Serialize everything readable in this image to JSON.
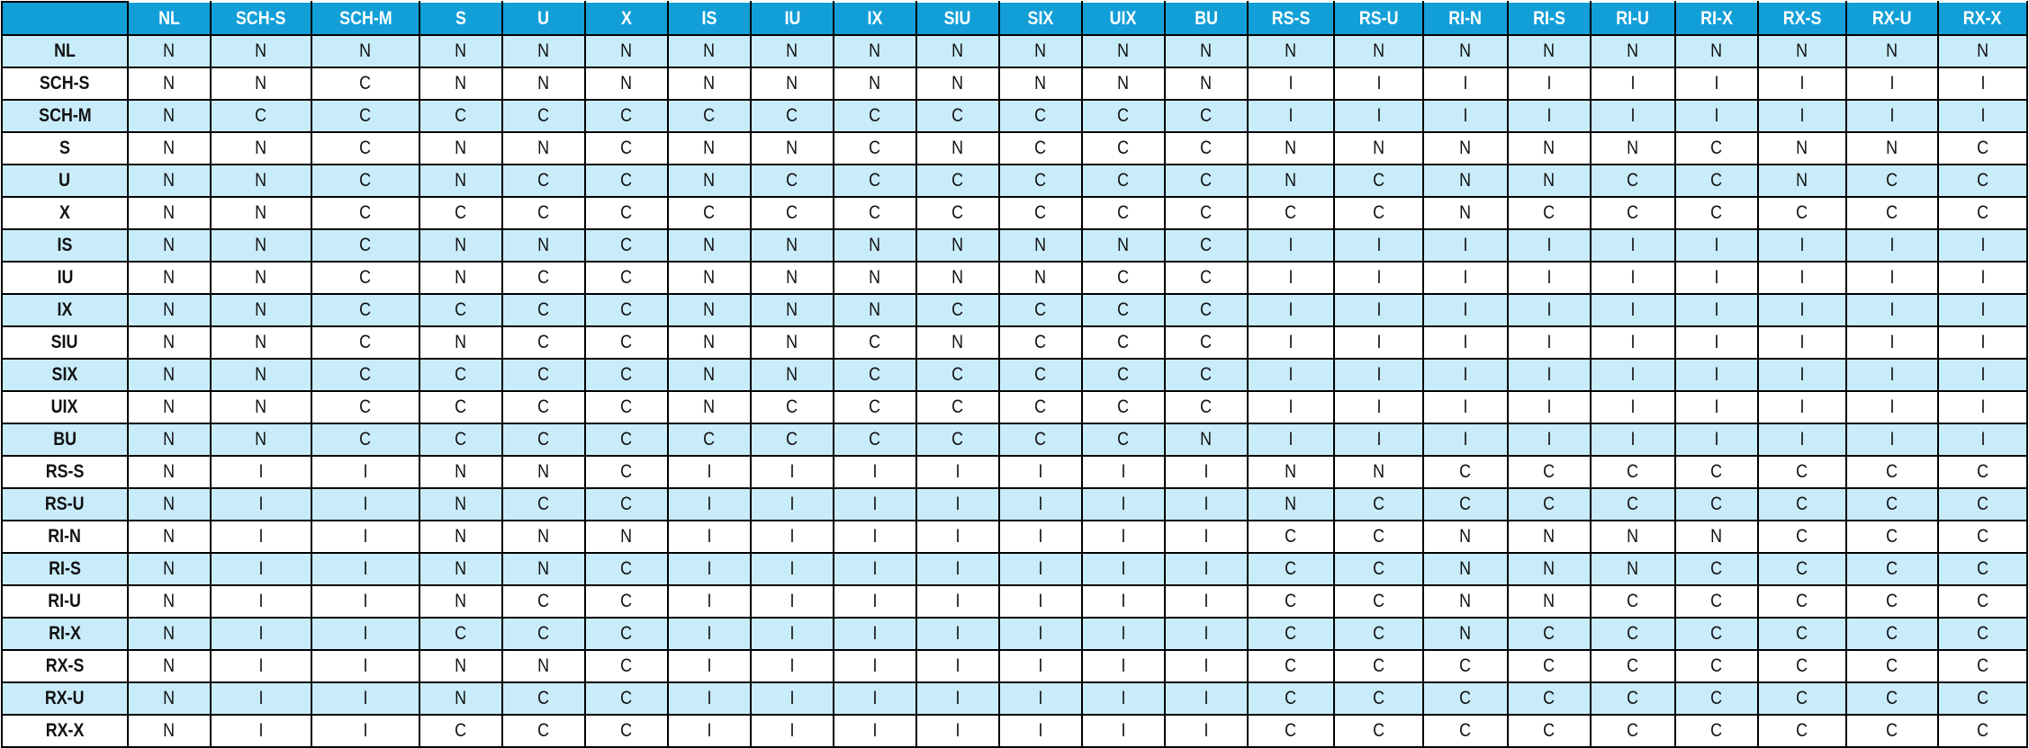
{
  "colors": {
    "header_bg": "#129fd8",
    "header_text": "#ffffff",
    "alt_row_bg": "#c9ecfa",
    "row_bg": "#ffffff",
    "border": "#000000"
  },
  "matrix": {
    "corner_label": "",
    "columns": [
      "NL",
      "SCH-S",
      "SCH-M",
      "S",
      "U",
      "X",
      "IS",
      "IU",
      "IX",
      "SIU",
      "SIX",
      "UIX",
      "BU",
      "RS-S",
      "RS-U",
      "RI-N",
      "RI-S",
      "RI-U",
      "RI-X",
      "RX-S",
      "RX-U",
      "RX-X"
    ],
    "rows": [
      {
        "label": "NL",
        "values": [
          "N",
          "N",
          "N",
          "N",
          "N",
          "N",
          "N",
          "N",
          "N",
          "N",
          "N",
          "N",
          "N",
          "N",
          "N",
          "N",
          "N",
          "N",
          "N",
          "N",
          "N",
          "N"
        ]
      },
      {
        "label": "SCH-S",
        "values": [
          "N",
          "N",
          "C",
          "N",
          "N",
          "N",
          "N",
          "N",
          "N",
          "N",
          "N",
          "N",
          "N",
          "I",
          "I",
          "I",
          "I",
          "I",
          "I",
          "I",
          "I",
          "I"
        ]
      },
      {
        "label": "SCH-M",
        "values": [
          "N",
          "C",
          "C",
          "C",
          "C",
          "C",
          "C",
          "C",
          "C",
          "C",
          "C",
          "C",
          "C",
          "I",
          "I",
          "I",
          "I",
          "I",
          "I",
          "I",
          "I",
          "I"
        ]
      },
      {
        "label": "S",
        "values": [
          "N",
          "N",
          "C",
          "N",
          "N",
          "C",
          "N",
          "N",
          "C",
          "N",
          "C",
          "C",
          "C",
          "N",
          "N",
          "N",
          "N",
          "N",
          "C",
          "N",
          "N",
          "C"
        ]
      },
      {
        "label": "U",
        "values": [
          "N",
          "N",
          "C",
          "N",
          "C",
          "C",
          "N",
          "C",
          "C",
          "C",
          "C",
          "C",
          "C",
          "N",
          "C",
          "N",
          "N",
          "C",
          "C",
          "N",
          "C",
          "C"
        ]
      },
      {
        "label": "X",
        "values": [
          "N",
          "N",
          "C",
          "C",
          "C",
          "C",
          "C",
          "C",
          "C",
          "C",
          "C",
          "C",
          "C",
          "C",
          "C",
          "N",
          "C",
          "C",
          "C",
          "C",
          "C",
          "C"
        ]
      },
      {
        "label": "IS",
        "values": [
          "N",
          "N",
          "C",
          "N",
          "N",
          "C",
          "N",
          "N",
          "N",
          "N",
          "N",
          "N",
          "C",
          "I",
          "I",
          "I",
          "I",
          "I",
          "I",
          "I",
          "I",
          "I"
        ]
      },
      {
        "label": "IU",
        "values": [
          "N",
          "N",
          "C",
          "N",
          "C",
          "C",
          "N",
          "N",
          "N",
          "N",
          "N",
          "C",
          "C",
          "I",
          "I",
          "I",
          "I",
          "I",
          "I",
          "I",
          "I",
          "I"
        ]
      },
      {
        "label": "IX",
        "values": [
          "N",
          "N",
          "C",
          "C",
          "C",
          "C",
          "N",
          "N",
          "N",
          "C",
          "C",
          "C",
          "C",
          "I",
          "I",
          "I",
          "I",
          "I",
          "I",
          "I",
          "I",
          "I"
        ]
      },
      {
        "label": "SIU",
        "values": [
          "N",
          "N",
          "C",
          "N",
          "C",
          "C",
          "N",
          "N",
          "C",
          "N",
          "C",
          "C",
          "C",
          "I",
          "I",
          "I",
          "I",
          "I",
          "I",
          "I",
          "I",
          "I"
        ]
      },
      {
        "label": "SIX",
        "values": [
          "N",
          "N",
          "C",
          "C",
          "C",
          "C",
          "N",
          "N",
          "C",
          "C",
          "C",
          "C",
          "C",
          "I",
          "I",
          "I",
          "I",
          "I",
          "I",
          "I",
          "I",
          "I"
        ]
      },
      {
        "label": "UIX",
        "values": [
          "N",
          "N",
          "C",
          "C",
          "C",
          "C",
          "N",
          "C",
          "C",
          "C",
          "C",
          "C",
          "C",
          "I",
          "I",
          "I",
          "I",
          "I",
          "I",
          "I",
          "I",
          "I"
        ]
      },
      {
        "label": "BU",
        "values": [
          "N",
          "N",
          "C",
          "C",
          "C",
          "C",
          "C",
          "C",
          "C",
          "C",
          "C",
          "C",
          "N",
          "I",
          "I",
          "I",
          "I",
          "I",
          "I",
          "I",
          "I",
          "I"
        ]
      },
      {
        "label": "RS-S",
        "values": [
          "N",
          "I",
          "I",
          "N",
          "N",
          "C",
          "I",
          "I",
          "I",
          "I",
          "I",
          "I",
          "I",
          "N",
          "N",
          "C",
          "C",
          "C",
          "C",
          "C",
          "C",
          "C"
        ]
      },
      {
        "label": "RS-U",
        "values": [
          "N",
          "I",
          "I",
          "N",
          "C",
          "C",
          "I",
          "I",
          "I",
          "I",
          "I",
          "I",
          "I",
          "N",
          "C",
          "C",
          "C",
          "C",
          "C",
          "C",
          "C",
          "C"
        ]
      },
      {
        "label": "RI-N",
        "values": [
          "N",
          "I",
          "I",
          "N",
          "N",
          "N",
          "I",
          "I",
          "I",
          "I",
          "I",
          "I",
          "I",
          "C",
          "C",
          "N",
          "N",
          "N",
          "N",
          "C",
          "C",
          "C"
        ]
      },
      {
        "label": "RI-S",
        "values": [
          "N",
          "I",
          "I",
          "N",
          "N",
          "C",
          "I",
          "I",
          "I",
          "I",
          "I",
          "I",
          "I",
          "C",
          "C",
          "N",
          "N",
          "N",
          "C",
          "C",
          "C",
          "C"
        ]
      },
      {
        "label": "RI-U",
        "values": [
          "N",
          "I",
          "I",
          "N",
          "C",
          "C",
          "I",
          "I",
          "I",
          "I",
          "I",
          "I",
          "I",
          "C",
          "C",
          "N",
          "N",
          "C",
          "C",
          "C",
          "C",
          "C"
        ]
      },
      {
        "label": "RI-X",
        "values": [
          "N",
          "I",
          "I",
          "C",
          "C",
          "C",
          "I",
          "I",
          "I",
          "I",
          "I",
          "I",
          "I",
          "C",
          "C",
          "N",
          "C",
          "C",
          "C",
          "C",
          "C",
          "C"
        ]
      },
      {
        "label": "RX-S",
        "values": [
          "N",
          "I",
          "I",
          "N",
          "N",
          "C",
          "I",
          "I",
          "I",
          "I",
          "I",
          "I",
          "I",
          "C",
          "C",
          "C",
          "C",
          "C",
          "C",
          "C",
          "C",
          "C"
        ]
      },
      {
        "label": "RX-U",
        "values": [
          "N",
          "I",
          "I",
          "N",
          "C",
          "C",
          "I",
          "I",
          "I",
          "I",
          "I",
          "I",
          "I",
          "C",
          "C",
          "C",
          "C",
          "C",
          "C",
          "C",
          "C",
          "C"
        ]
      },
      {
        "label": "RX-X",
        "values": [
          "N",
          "I",
          "I",
          "C",
          "C",
          "C",
          "I",
          "I",
          "I",
          "I",
          "I",
          "I",
          "I",
          "C",
          "C",
          "C",
          "C",
          "C",
          "C",
          "C",
          "C",
          "C"
        ]
      }
    ]
  }
}
